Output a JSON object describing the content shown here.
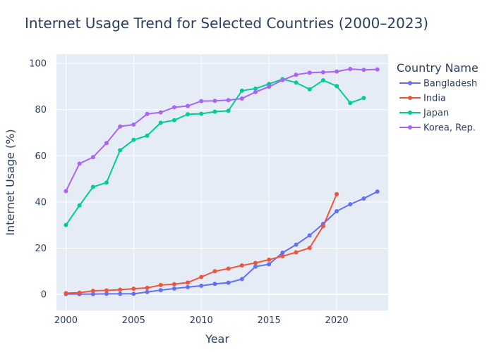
{
  "chart_data": {
    "type": "line",
    "title": "Internet Usage Trend for Selected Countries (2000–2023)",
    "xlabel": "Year",
    "ylabel": "Internet Usage (%)",
    "xlim": [
      1999.3,
      2023.8
    ],
    "ylim": [
      -7,
      104
    ],
    "x_ticks": [
      2000,
      2005,
      2010,
      2015,
      2020
    ],
    "y_ticks": [
      0,
      20,
      40,
      60,
      80,
      100
    ],
    "grid": true,
    "legend": {
      "title": "Country Name",
      "placement": "right"
    },
    "series": [
      {
        "name": "Bangladesh",
        "color": "#636efa",
        "x": [
          2000,
          2001,
          2002,
          2003,
          2004,
          2005,
          2006,
          2007,
          2008,
          2009,
          2010,
          2011,
          2012,
          2013,
          2014,
          2015,
          2016,
          2017,
          2018,
          2019,
          2020,
          2021,
          2022,
          2023
        ],
        "y": [
          0.1,
          0.1,
          0.1,
          0.2,
          0.2,
          0.2,
          1.0,
          1.8,
          2.5,
          3.1,
          3.7,
          4.5,
          5.0,
          6.6,
          12.0,
          13.0,
          18.0,
          21.5,
          25.5,
          30.5,
          36.0,
          39.0,
          41.5,
          44.5
        ]
      },
      {
        "name": "India",
        "color": "#ef553b",
        "x": [
          2000,
          2001,
          2002,
          2003,
          2004,
          2005,
          2006,
          2007,
          2008,
          2009,
          2010,
          2011,
          2012,
          2013,
          2014,
          2015,
          2016,
          2017,
          2018,
          2019,
          2020
        ],
        "y": [
          0.5,
          0.7,
          1.5,
          1.7,
          2.0,
          2.4,
          2.8,
          4.0,
          4.4,
          5.1,
          7.5,
          10.0,
          11.1,
          12.5,
          13.6,
          15.0,
          16.5,
          18.2,
          20.1,
          29.5,
          43.4
        ]
      },
      {
        "name": "Japan",
        "color": "#00cc96",
        "x": [
          2000,
          2001,
          2002,
          2003,
          2004,
          2005,
          2006,
          2007,
          2008,
          2009,
          2010,
          2011,
          2012,
          2013,
          2014,
          2015,
          2016,
          2017,
          2018,
          2019,
          2020,
          2021,
          2022
        ],
        "y": [
          30.0,
          38.5,
          46.5,
          48.4,
          62.4,
          66.9,
          68.7,
          74.3,
          75.4,
          78.0,
          78.2,
          79.1,
          79.5,
          88.2,
          89.1,
          91.1,
          93.2,
          91.7,
          88.8,
          92.7,
          90.2,
          82.9,
          85.0
        ]
      },
      {
        "name": "Korea, Rep.",
        "color": "#ab63fa",
        "x": [
          2000,
          2001,
          2002,
          2003,
          2004,
          2005,
          2006,
          2007,
          2008,
          2009,
          2010,
          2011,
          2012,
          2013,
          2014,
          2015,
          2016,
          2017,
          2018,
          2019,
          2020,
          2021,
          2022,
          2023
        ],
        "y": [
          44.7,
          56.6,
          59.4,
          65.5,
          72.7,
          73.5,
          78.1,
          78.8,
          81.0,
          81.6,
          83.7,
          83.8,
          84.1,
          84.8,
          87.6,
          89.9,
          92.8,
          95.1,
          96.0,
          96.2,
          96.5,
          97.6,
          97.2,
          97.4
        ]
      }
    ]
  }
}
